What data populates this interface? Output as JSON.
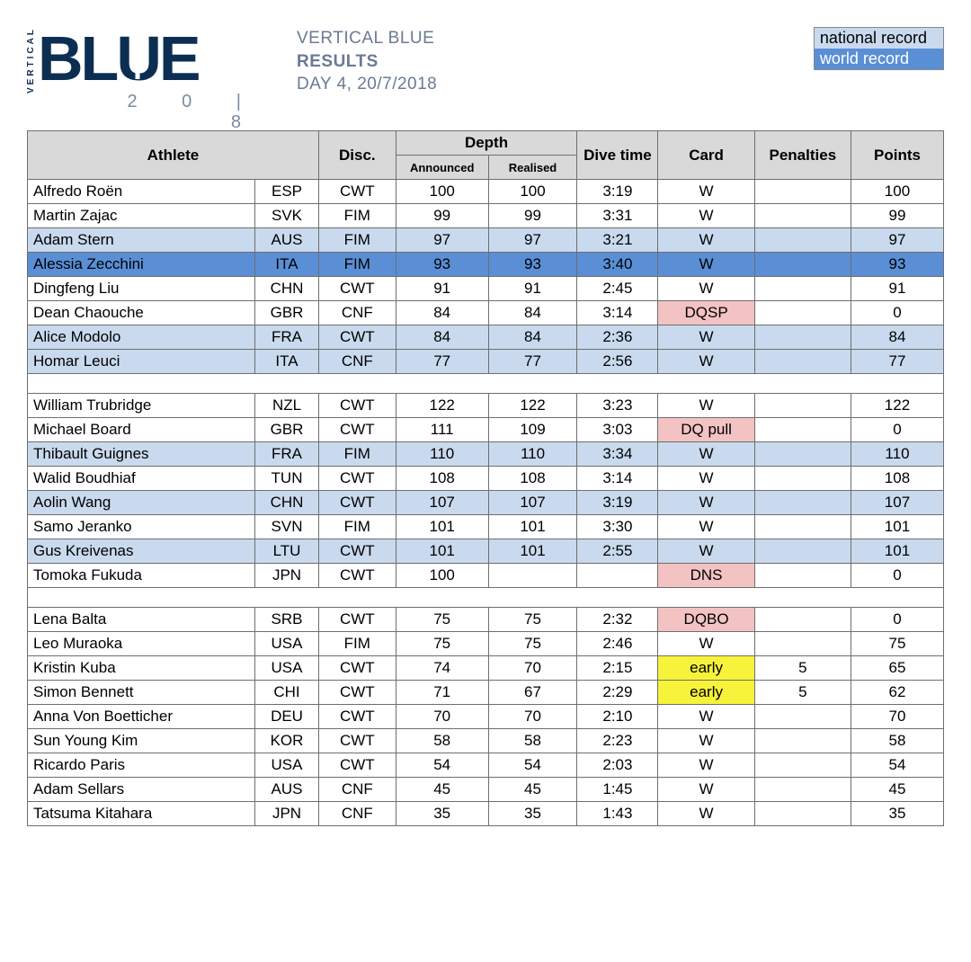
{
  "header": {
    "logo_text": "BLUE",
    "logo_vertical": "VERTICAL",
    "logo_year": "2018",
    "title_line1": "VERTICAL BLUE",
    "title_line2": "RESULTS",
    "title_line3": "DAY 4,   20/7/2018"
  },
  "legend": {
    "national": "national record",
    "world": "world record",
    "national_bg": "#c9daee",
    "world_bg": "#5a8fd6"
  },
  "colors": {
    "header_bg": "#d9d9d9",
    "border": "#6e6e6e",
    "dq_bg": "#f3c3c3",
    "early_bg": "#f7f33a",
    "logo_color": "#0c2e52",
    "title_color": "#6a7a94"
  },
  "columns": {
    "athlete": "Athlete",
    "disc": "Disc.",
    "depth": "Depth",
    "announced": "Announced",
    "realised": "Realised",
    "dive_time": "Dive time",
    "card": "Card",
    "penalties": "Penalties",
    "points": "Points"
  },
  "groups": [
    {
      "rows": [
        {
          "name": "Alfredo Roën",
          "nat": "ESP",
          "disc": "CWT",
          "ann": "100",
          "real": "100",
          "time": "3:19",
          "card": "W",
          "pen": "",
          "pts": "100",
          "hl": ""
        },
        {
          "name": "Martin Zajac",
          "nat": "SVK",
          "disc": "FIM",
          "ann": "99",
          "real": "99",
          "time": "3:31",
          "card": "W",
          "pen": "",
          "pts": "99",
          "hl": ""
        },
        {
          "name": "Adam Stern",
          "nat": "AUS",
          "disc": "FIM",
          "ann": "97",
          "real": "97",
          "time": "3:21",
          "card": "W",
          "pen": "",
          "pts": "97",
          "hl": "nat"
        },
        {
          "name": "Alessia Zecchini",
          "nat": "ITA",
          "disc": "FIM",
          "ann": "93",
          "real": "93",
          "time": "3:40",
          "card": "W",
          "pen": "",
          "pts": "93",
          "hl": "wor"
        },
        {
          "name": "Dingfeng Liu",
          "nat": "CHN",
          "disc": "CWT",
          "ann": "91",
          "real": "91",
          "time": "2:45",
          "card": "W",
          "pen": "",
          "pts": "91",
          "hl": ""
        },
        {
          "name": "Dean Chaouche",
          "nat": "GBR",
          "disc": "CNF",
          "ann": "84",
          "real": "84",
          "time": "3:14",
          "card": "DQSP",
          "pen": "",
          "pts": "0",
          "hl": "",
          "card_style": "dq"
        },
        {
          "name": "Alice Modolo",
          "nat": "FRA",
          "disc": "CWT",
          "ann": "84",
          "real": "84",
          "time": "2:36",
          "card": "W",
          "pen": "",
          "pts": "84",
          "hl": "nat"
        },
        {
          "name": "Homar Leuci",
          "nat": "ITA",
          "disc": "CNF",
          "ann": "77",
          "real": "77",
          "time": "2:56",
          "card": "W",
          "pen": "",
          "pts": "77",
          "hl": "nat"
        }
      ]
    },
    {
      "rows": [
        {
          "name": "William Trubridge",
          "nat": "NZL",
          "disc": "CWT",
          "ann": "122",
          "real": "122",
          "time": "3:23",
          "card": "W",
          "pen": "",
          "pts": "122",
          "hl": ""
        },
        {
          "name": "Michael Board",
          "nat": "GBR",
          "disc": "CWT",
          "ann": "111",
          "real": "109",
          "time": "3:03",
          "card": "DQ pull",
          "pen": "",
          "pts": "0",
          "hl": "",
          "card_style": "dq"
        },
        {
          "name": "Thibault Guignes",
          "nat": "FRA",
          "disc": "FIM",
          "ann": "110",
          "real": "110",
          "time": "3:34",
          "card": "W",
          "pen": "",
          "pts": "110",
          "hl": "nat"
        },
        {
          "name": "Walid Boudhiaf",
          "nat": "TUN",
          "disc": "CWT",
          "ann": "108",
          "real": "108",
          "time": "3:14",
          "card": "W",
          "pen": "",
          "pts": "108",
          "hl": ""
        },
        {
          "name": "Aolin Wang",
          "nat": "CHN",
          "disc": "CWT",
          "ann": "107",
          "real": "107",
          "time": "3:19",
          "card": "W",
          "pen": "",
          "pts": "107",
          "hl": "nat"
        },
        {
          "name": "Samo Jeranko",
          "nat": "SVN",
          "disc": "FIM",
          "ann": "101",
          "real": "101",
          "time": "3:30",
          "card": "W",
          "pen": "",
          "pts": "101",
          "hl": ""
        },
        {
          "name": "Gus Kreivenas",
          "nat": "LTU",
          "disc": "CWT",
          "ann": "101",
          "real": "101",
          "time": "2:55",
          "card": "W",
          "pen": "",
          "pts": "101",
          "hl": "nat"
        },
        {
          "name": "Tomoka Fukuda",
          "nat": "JPN",
          "disc": "CWT",
          "ann": "100",
          "real": "",
          "time": "",
          "card": "DNS",
          "pen": "",
          "pts": "0",
          "hl": "",
          "card_style": "dq"
        }
      ]
    },
    {
      "rows": [
        {
          "name": "Lena Balta",
          "nat": "SRB",
          "disc": "CWT",
          "ann": "75",
          "real": "75",
          "time": "2:32",
          "card": "DQBO",
          "pen": "",
          "pts": "0",
          "hl": "",
          "card_style": "dq"
        },
        {
          "name": "Leo Muraoka",
          "nat": "USA",
          "disc": "FIM",
          "ann": "75",
          "real": "75",
          "time": "2:46",
          "card": "W",
          "pen": "",
          "pts": "75",
          "hl": ""
        },
        {
          "name": "Kristin Kuba",
          "nat": "USA",
          "disc": "CWT",
          "ann": "74",
          "real": "70",
          "time": "2:15",
          "card": "early",
          "pen": "5",
          "pts": "65",
          "hl": "",
          "card_style": "early"
        },
        {
          "name": "Simon Bennett",
          "nat": "CHI",
          "disc": "CWT",
          "ann": "71",
          "real": "67",
          "time": "2:29",
          "card": "early",
          "pen": "5",
          "pts": "62",
          "hl": "",
          "card_style": "early"
        },
        {
          "name": "Anna Von Boetticher",
          "nat": "DEU",
          "disc": "CWT",
          "ann": "70",
          "real": "70",
          "time": "2:10",
          "card": "W",
          "pen": "",
          "pts": "70",
          "hl": ""
        },
        {
          "name": "Sun Young Kim",
          "nat": "KOR",
          "disc": "CWT",
          "ann": "58",
          "real": "58",
          "time": "2:23",
          "card": "W",
          "pen": "",
          "pts": "58",
          "hl": ""
        },
        {
          "name": "Ricardo Paris",
          "nat": "USA",
          "disc": "CWT",
          "ann": "54",
          "real": "54",
          "time": "2:03",
          "card": "W",
          "pen": "",
          "pts": "54",
          "hl": ""
        },
        {
          "name": "Adam Sellars",
          "nat": "AUS",
          "disc": "CNF",
          "ann": "45",
          "real": "45",
          "time": "1:45",
          "card": "W",
          "pen": "",
          "pts": "45",
          "hl": ""
        },
        {
          "name": "Tatsuma Kitahara",
          "nat": "JPN",
          "disc": "CNF",
          "ann": "35",
          "real": "35",
          "time": "1:43",
          "card": "W",
          "pen": "",
          "pts": "35",
          "hl": ""
        }
      ]
    }
  ]
}
